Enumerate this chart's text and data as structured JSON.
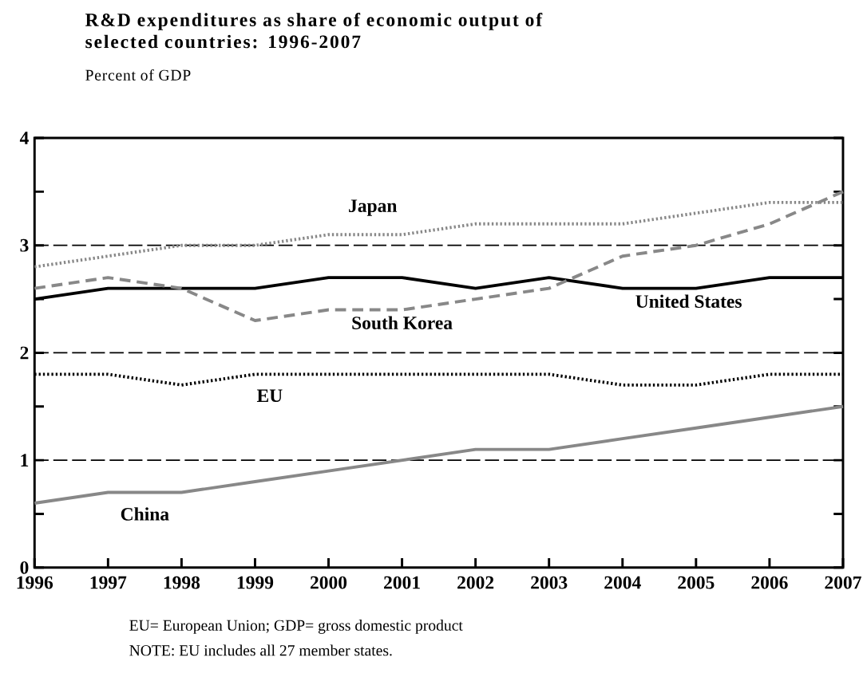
{
  "chart_data": {
    "type": "line",
    "title": "R&D expenditures as share of economic output of selected countries: 1996-2007",
    "subtitle": "Percent of GDP",
    "x": [
      1996,
      1997,
      1998,
      1999,
      2000,
      2001,
      2002,
      2003,
      2004,
      2005,
      2006,
      2007
    ],
    "series": [
      {
        "name": "Japan",
        "color": "#888888",
        "line_style": "dotted",
        "values": [
          2.8,
          2.9,
          3.0,
          3.0,
          3.1,
          3.1,
          3.2,
          3.2,
          3.2,
          3.3,
          3.4,
          3.4
        ]
      },
      {
        "name": "United States",
        "color": "#000000",
        "line_style": "solid",
        "values": [
          2.5,
          2.6,
          2.6,
          2.6,
          2.7,
          2.7,
          2.6,
          2.7,
          2.6,
          2.6,
          2.7,
          2.7
        ]
      },
      {
        "name": "South Korea",
        "color": "#888888",
        "line_style": "dashed",
        "values": [
          2.6,
          2.7,
          2.6,
          2.3,
          2.4,
          2.4,
          2.5,
          2.6,
          2.9,
          3.0,
          3.2,
          3.5
        ]
      },
      {
        "name": "EU",
        "color": "#000000",
        "line_style": "dotted",
        "values": [
          1.8,
          1.8,
          1.7,
          1.8,
          1.8,
          1.8,
          1.8,
          1.8,
          1.7,
          1.7,
          1.8,
          1.8
        ]
      },
      {
        "name": "China",
        "color": "#888888",
        "line_style": "solid",
        "values": [
          0.6,
          0.7,
          0.7,
          0.8,
          0.9,
          1.0,
          1.1,
          1.1,
          1.2,
          1.3,
          1.4,
          1.5
        ]
      }
    ],
    "xlim": [
      1996,
      2007
    ],
    "ylim": [
      0,
      4
    ],
    "xticks": [
      1996,
      1997,
      1998,
      1999,
      2000,
      2001,
      2002,
      2003,
      2004,
      2005,
      2006,
      2007
    ],
    "yticks": [
      0,
      {
        "value": 0.5,
        "label": null
      },
      1,
      {
        "value": 1.5,
        "label": null
      },
      2,
      {
        "value": 2.5,
        "label": null
      },
      3,
      {
        "value": 3.5,
        "label": null
      },
      4
    ],
    "grid": "y",
    "marker": "none",
    "annotations": [
      "EU= European Union; GDP= gross domestic product",
      "NOTE: EU includes all 27 member states."
    ]
  }
}
